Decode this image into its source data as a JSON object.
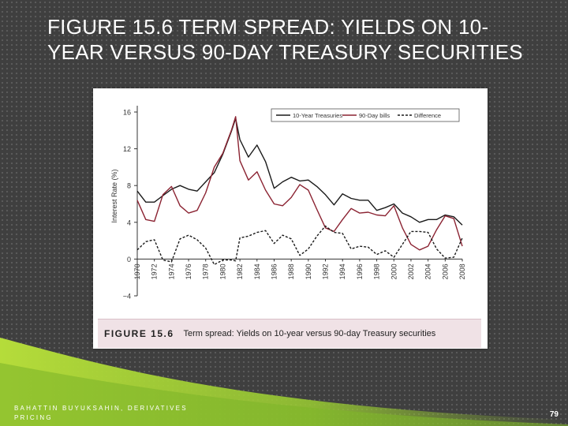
{
  "slide": {
    "title": "FIGURE 15.6 TERM SPREAD:  YIELDS ON 10-YEAR VERSUS 90-DAY TREASURY SECURITIES",
    "footer_author": "BAHATTIN BUYUKSAHIN, DERIVATIVES PRICING",
    "page_number": "79"
  },
  "figure": {
    "caption_label": "FIGURE 15.6",
    "caption_text": "Term spread: Yields on 10-year versus 90-day Treasury securities"
  },
  "colors": {
    "ten_year": "#1a1a1a",
    "ninety_day": "#8b2332",
    "difference": "#1a1a1a",
    "caption_bg": "#f0e2e6",
    "accent_green": "#9acd32"
  },
  "chart_data": {
    "type": "line",
    "title": "",
    "xlabel": "",
    "ylabel": "Interest Rate (%)",
    "xlim": [
      1970,
      2008
    ],
    "ylim": [
      -4,
      16
    ],
    "x_ticks": [
      "1970",
      "1972",
      "1974",
      "1976",
      "1978",
      "1980",
      "1982",
      "1984",
      "1986",
      "1988",
      "1990",
      "1992",
      "1994",
      "1996",
      "1998",
      "2000",
      "2002",
      "2004",
      "2006",
      "2008"
    ],
    "y_ticks": [
      "16",
      "12",
      "8",
      "4",
      "0",
      "−4"
    ],
    "legend_position": "top-right",
    "grid": false,
    "series": [
      {
        "name": "10-Year Treasuries",
        "line_style": "solid",
        "color": "#1a1a1a",
        "x": [
          1970,
          1971,
          1972,
          1973,
          1974,
          1975,
          1976,
          1977,
          1978,
          1979,
          1980,
          1981,
          1981.5,
          1982,
          1983,
          1984,
          1985,
          1986,
          1987,
          1988,
          1989,
          1990,
          1991,
          1992,
          1993,
          1994,
          1995,
          1996,
          1997,
          1998,
          1999,
          2000,
          2001,
          2002,
          2003,
          2004,
          2005,
          2006,
          2007,
          2008
        ],
        "y": [
          7.4,
          6.2,
          6.2,
          6.9,
          7.6,
          8.0,
          7.6,
          7.4,
          8.4,
          9.4,
          11.4,
          13.9,
          15.3,
          13.0,
          11.1,
          12.4,
          10.6,
          7.7,
          8.4,
          8.9,
          8.5,
          8.6,
          7.9,
          7.0,
          5.9,
          7.1,
          6.6,
          6.4,
          6.4,
          5.3,
          5.6,
          6.0,
          5.0,
          4.6,
          4.0,
          4.3,
          4.3,
          4.8,
          4.6,
          3.7
        ]
      },
      {
        "name": "90-Day bills",
        "line_style": "solid",
        "color": "#8b2332",
        "x": [
          1970,
          1971,
          1972,
          1973,
          1974,
          1975,
          1976,
          1977,
          1978,
          1979,
          1980,
          1981,
          1981.5,
          1982,
          1983,
          1984,
          1985,
          1986,
          1987,
          1988,
          1989,
          1990,
          1991,
          1992,
          1993,
          1994,
          1995,
          1996,
          1997,
          1998,
          1999,
          2000,
          2001,
          2002,
          2003,
          2004,
          2005,
          2006,
          2007,
          2008
        ],
        "y": [
          6.4,
          4.3,
          4.1,
          7.0,
          7.9,
          5.8,
          5.0,
          5.3,
          7.2,
          10.0,
          11.5,
          14.0,
          15.5,
          10.7,
          8.6,
          9.5,
          7.5,
          6.0,
          5.8,
          6.7,
          8.1,
          7.5,
          5.4,
          3.4,
          3.0,
          4.3,
          5.5,
          5.0,
          5.1,
          4.8,
          4.7,
          5.8,
          3.4,
          1.6,
          1.0,
          1.4,
          3.2,
          4.7,
          4.4,
          1.4
        ]
      },
      {
        "name": "Difference",
        "line_style": "dashed",
        "color": "#1a1a1a",
        "x": [
          1970,
          1971,
          1972,
          1973,
          1974,
          1975,
          1976,
          1977,
          1978,
          1979,
          1980,
          1981,
          1981.5,
          1982,
          1983,
          1984,
          1985,
          1986,
          1987,
          1988,
          1989,
          1990,
          1991,
          1992,
          1993,
          1994,
          1995,
          1996,
          1997,
          1998,
          1999,
          2000,
          2001,
          2002,
          2003,
          2004,
          2005,
          2006,
          2007,
          2008
        ],
        "y": [
          1.0,
          1.9,
          2.1,
          -0.1,
          -0.3,
          2.2,
          2.6,
          2.1,
          1.2,
          -0.6,
          -0.1,
          -0.1,
          -0.2,
          2.3,
          2.5,
          2.9,
          3.1,
          1.7,
          2.6,
          2.2,
          0.4,
          1.1,
          2.5,
          3.6,
          2.9,
          2.8,
          1.1,
          1.4,
          1.3,
          0.5,
          0.9,
          0.2,
          1.6,
          3.0,
          3.0,
          2.9,
          1.1,
          0.1,
          0.2,
          2.3
        ]
      }
    ]
  }
}
